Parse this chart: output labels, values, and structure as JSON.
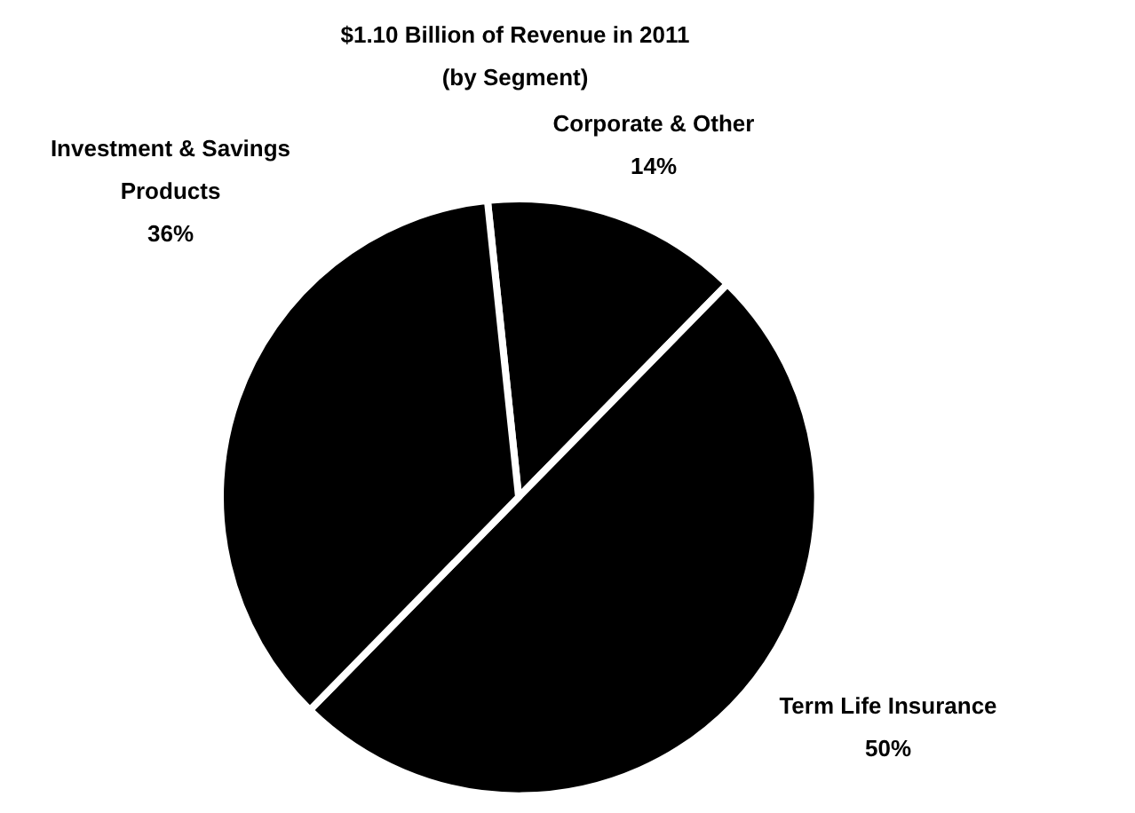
{
  "chart_data": {
    "type": "pie",
    "title": "$1.10 Billion of Revenue in 2011",
    "subtitle": "(by Segment)",
    "categories": [
      "Corporate & Other",
      "Term Life Insurance",
      "Investment & Savings Products"
    ],
    "values": [
      14,
      50,
      36
    ],
    "colors": [
      "#000000",
      "#000000",
      "#000000"
    ],
    "value_labels": [
      "14%",
      "50%",
      "36%"
    ]
  }
}
